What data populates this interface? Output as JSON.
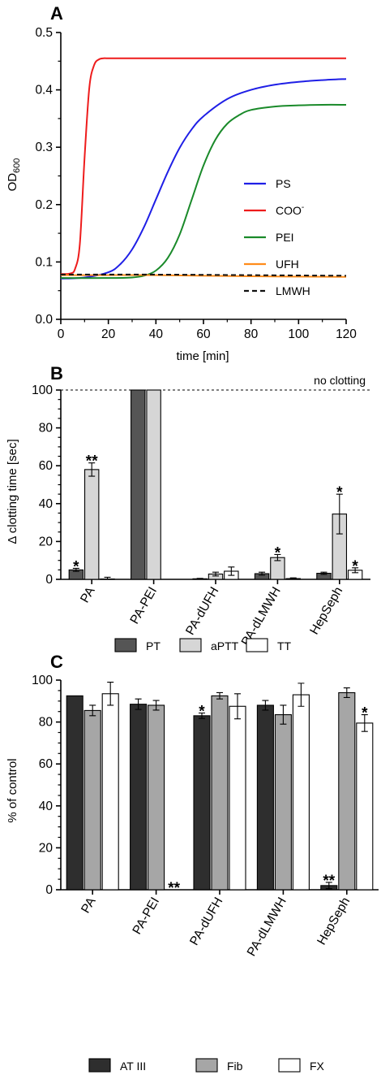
{
  "chart_data": [
    {
      "panel": "A",
      "type": "line",
      "xlabel": "time [min]",
      "ylabel": "OD600",
      "xlim": [
        0,
        120
      ],
      "ylim": [
        0,
        0.5
      ],
      "xticks": [
        "0",
        "20",
        "40",
        "60",
        "80",
        "100",
        "120"
      ],
      "yticks": [
        "0.0",
        "0.1",
        "0.2",
        "0.3",
        "0.4",
        "0.5"
      ],
      "series": [
        {
          "name": "PS",
          "color": "#1f1fe6",
          "style": "solid",
          "x": [
            0,
            10,
            20,
            25,
            30,
            35,
            40,
            45,
            50,
            55,
            60,
            70,
            80,
            90,
            100,
            110,
            120
          ],
          "y": [
            0.071,
            0.073,
            0.082,
            0.096,
            0.122,
            0.161,
            0.209,
            0.257,
            0.299,
            0.331,
            0.354,
            0.384,
            0.4,
            0.409,
            0.414,
            0.417,
            0.419
          ]
        },
        {
          "name": "COO-",
          "color": "#ee1c1c",
          "style": "solid",
          "x": [
            0,
            4,
            6,
            8,
            10,
            12,
            14,
            16,
            18,
            20,
            30,
            60,
            90,
            120
          ],
          "y": [
            0.079,
            0.08,
            0.088,
            0.131,
            0.282,
            0.404,
            0.443,
            0.453,
            0.455,
            0.455,
            0.455,
            0.455,
            0.455,
            0.455
          ]
        },
        {
          "name": "PEI",
          "color": "#1a8a2a",
          "style": "solid",
          "x": [
            0,
            20,
            30,
            35,
            40,
            45,
            50,
            55,
            60,
            65,
            70,
            75,
            80,
            90,
            100,
            110,
            120
          ],
          "y": [
            0.072,
            0.072,
            0.073,
            0.076,
            0.085,
            0.107,
            0.148,
            0.208,
            0.268,
            0.313,
            0.341,
            0.356,
            0.365,
            0.371,
            0.373,
            0.374,
            0.374
          ]
        },
        {
          "name": "UFH",
          "color": "#ff8c1a",
          "style": "solid",
          "x": [
            0,
            40,
            80,
            120
          ],
          "y": [
            0.077,
            0.077,
            0.075,
            0.074
          ]
        },
        {
          "name": "LMWH",
          "color": "#111111",
          "style": "dashed",
          "x": [
            0,
            40,
            80,
            120
          ],
          "y": [
            0.078,
            0.078,
            0.077,
            0.076
          ]
        }
      ]
    },
    {
      "panel": "B",
      "type": "bar",
      "ylabel": "Δ clotting time [sec]",
      "ylim": [
        0,
        100
      ],
      "yticks": [
        "0",
        "20",
        "40",
        "60",
        "80",
        "100"
      ],
      "reference_line_label": "no clotting",
      "categories": [
        "PA",
        "PA-PEI",
        "PA-dUFH",
        "PA-dLMWH",
        "HepSeph"
      ],
      "series": [
        {
          "name": "PT",
          "color": "#555555",
          "values": [
            5,
            100,
            0.3,
            3,
            3.2
          ],
          "errors": [
            0.8,
            0,
            0.2,
            0.8,
            0.6
          ],
          "annotations": [
            "*",
            "",
            "",
            "",
            ""
          ]
        },
        {
          "name": "aPTT",
          "color": "#d6d6d6",
          "values": [
            58,
            100,
            2.8,
            11.5,
            34.5
          ],
          "errors": [
            3.5,
            0,
            1,
            1.6,
            10.5
          ],
          "annotations": [
            "**",
            "",
            "",
            "*",
            "*"
          ]
        },
        {
          "name": "TT",
          "color": "#ffffff",
          "values": [
            0.2,
            0,
            4.3,
            0.4,
            4.8
          ],
          "errors": [
            0.9,
            0,
            2.2,
            0.4,
            1.3
          ],
          "annotations": [
            "",
            "",
            "",
            "",
            "*"
          ]
        }
      ]
    },
    {
      "panel": "C",
      "type": "bar",
      "ylabel": "% of control",
      "ylim": [
        0,
        100
      ],
      "yticks": [
        "0",
        "20",
        "40",
        "60",
        "80",
        "100"
      ],
      "categories": [
        "PA",
        "PA-PEI",
        "PA-dUFH",
        "PA-dLMWH",
        "HepSeph"
      ],
      "series": [
        {
          "name": "AT III",
          "color": "#2e2e2e",
          "values": [
            92.5,
            88.5,
            83,
            88,
            2
          ],
          "errors": [
            0,
            2.5,
            1.3,
            2.3,
            1.5
          ],
          "annotations": [
            "",
            "",
            "*",
            "",
            "**"
          ]
        },
        {
          "name": "Fib",
          "color": "#a6a6a6",
          "values": [
            85.5,
            88,
            92.5,
            83.5,
            94
          ],
          "errors": [
            2.5,
            2.3,
            1.5,
            4.5,
            2.3
          ],
          "annotations": [
            "",
            "",
            "",
            "",
            ""
          ]
        },
        {
          "name": "FX",
          "color": "#ffffff",
          "values": [
            93.5,
            0,
            87.5,
            93,
            79.5
          ],
          "errors": [
            5.5,
            0,
            6,
            5.5,
            4
          ],
          "annotations": [
            "",
            "**",
            "",
            "",
            "*"
          ]
        }
      ]
    }
  ]
}
